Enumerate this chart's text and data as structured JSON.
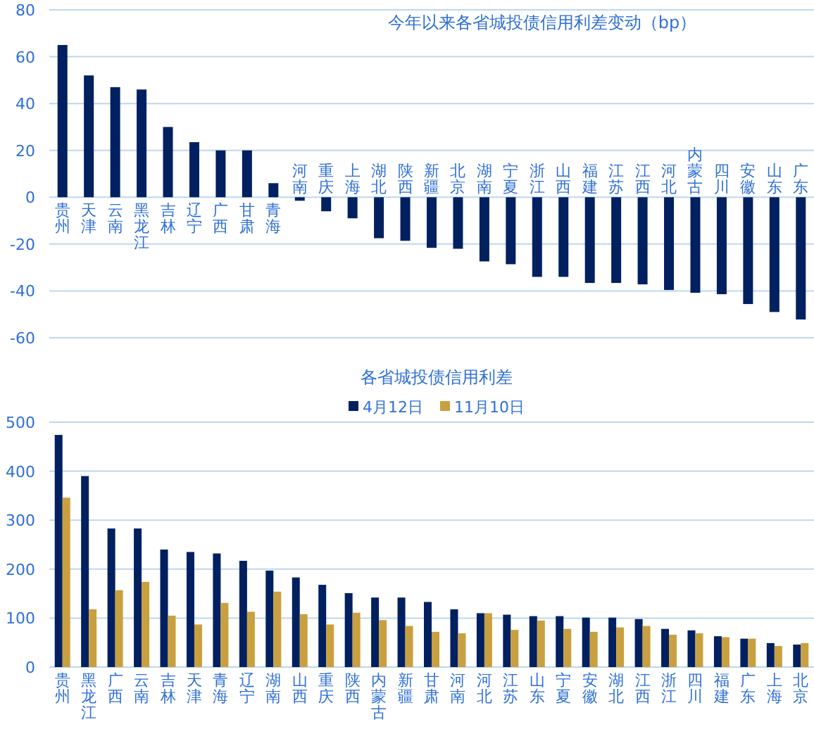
{
  "chart_data": [
    {
      "type": "bar",
      "title": "今年以来各省城投债信用利差变动（bp）",
      "categories": [
        "贵州",
        "天津",
        "云南",
        "黑龙江",
        "吉林",
        "辽宁",
        "广西",
        "甘肃",
        "青海",
        "河南",
        "重庆",
        "上海",
        "湖北",
        "陕西",
        "新疆",
        "北京",
        "湖南",
        "宁夏",
        "浙江",
        "山西",
        "福建",
        "江苏",
        "江西",
        "河北",
        "内蒙古",
        "四川",
        "安徽",
        "山东",
        "广东"
      ],
      "series": [
        {
          "color": "#002060",
          "values": [
            65,
            52,
            47,
            46,
            30,
            23.5,
            20,
            20,
            6,
            -1.5,
            -6,
            -9,
            -17.5,
            -18.6,
            -21.6,
            -22,
            -27.4,
            -28.6,
            -34,
            -34,
            -36.6,
            -36.6,
            -37.2,
            -39.6,
            -40.8,
            -41.4,
            -45.6,
            -49,
            -52.2
          ]
        }
      ],
      "ylim": [
        -60,
        80
      ],
      "yticks": [
        -60,
        -40,
        -20,
        0,
        20,
        40,
        60,
        80
      ],
      "grid": "y"
    },
    {
      "type": "bar",
      "title": "各省城投债信用利差",
      "categories": [
        "贵州",
        "黑龙江",
        "广西",
        "云南",
        "吉林",
        "天津",
        "青海",
        "辽宁",
        "湖南",
        "山西",
        "重庆",
        "陕西",
        "内蒙古",
        "新疆",
        "甘肃",
        "河南",
        "河北",
        "江苏",
        "山东",
        "宁夏",
        "安徽",
        "湖北",
        "江西",
        "浙江",
        "四川",
        "福建",
        "广东",
        "上海",
        "北京"
      ],
      "series": [
        {
          "name": "4月12日",
          "color": "#002060",
          "values": [
            474,
            390,
            283,
            283,
            240,
            235,
            232,
            217,
            197,
            183,
            168,
            151,
            142,
            142,
            133,
            118,
            110,
            107,
            104,
            104,
            101,
            101,
            98,
            78,
            75,
            63,
            58,
            49,
            46
          ]
        },
        {
          "name": "11月10日",
          "color": "#c9a040",
          "values": [
            346,
            118,
            157,
            174,
            105,
            87,
            131,
            113,
            154,
            108,
            87,
            111,
            96,
            84,
            72,
            69,
            110,
            76,
            95,
            78,
            72,
            81,
            84,
            66,
            69,
            61,
            58,
            43,
            49
          ]
        }
      ],
      "ylim": [
        0,
        500
      ],
      "yticks": [
        0,
        100,
        200,
        300,
        400,
        500
      ],
      "grid": "y",
      "legend": "top"
    }
  ]
}
